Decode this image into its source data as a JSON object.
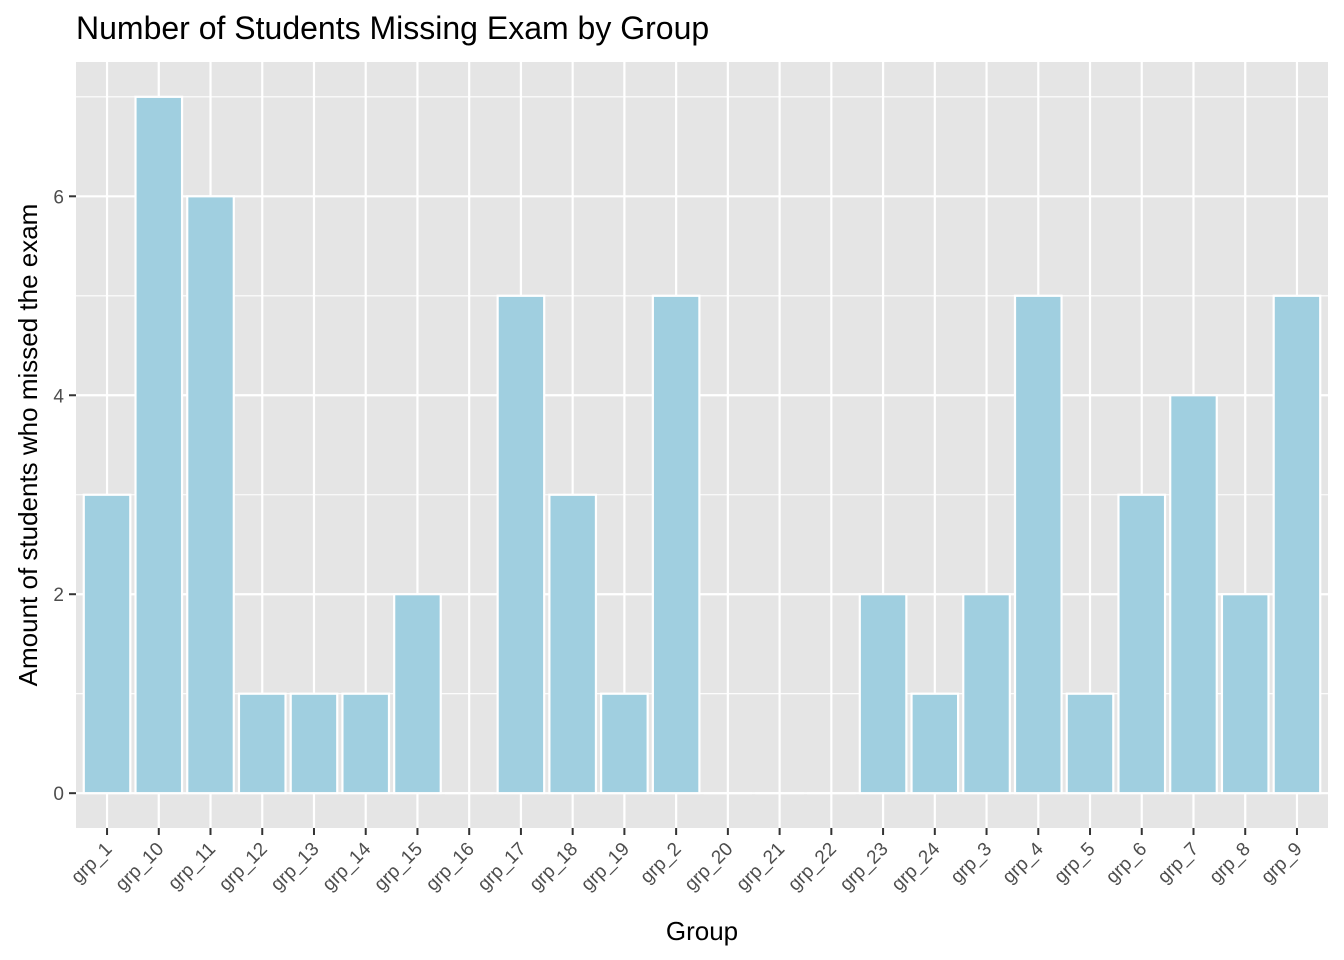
{
  "chart_data": {
    "type": "bar",
    "title": "Number of Students Missing Exam by Group",
    "xlabel": "Group",
    "ylabel": "Amount of students who missed the exam",
    "categories": [
      "grp_1",
      "grp_10",
      "grp_11",
      "grp_12",
      "grp_13",
      "grp_14",
      "grp_15",
      "grp_16",
      "grp_17",
      "grp_18",
      "grp_19",
      "grp_2",
      "grp_20",
      "grp_21",
      "grp_22",
      "grp_23",
      "grp_24",
      "grp_3",
      "grp_4",
      "grp_5",
      "grp_6",
      "grp_7",
      "grp_8",
      "grp_9"
    ],
    "values": [
      3,
      7,
      6,
      1,
      1,
      1,
      2,
      0,
      5,
      3,
      1,
      5,
      0,
      0,
      0,
      2,
      1,
      2,
      5,
      1,
      3,
      4,
      2,
      5
    ],
    "ylim": [
      -0.35,
      7.35
    ],
    "yticks": [
      0,
      2,
      4,
      6
    ],
    "grid": true,
    "legend": "none",
    "colors": {
      "bar_fill": "#a0cfe0",
      "bar_stroke": "#ffffff",
      "panel_bg": "#e5e5e5",
      "grid": "#ffffff",
      "tick_text": "#4d4d4d"
    }
  }
}
